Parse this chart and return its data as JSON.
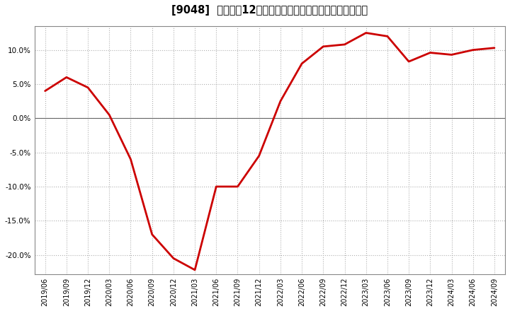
{
  "title": "[9048]  売上高の12か月移動合計の対前年同期増減率の推移",
  "line_color": "#cc0000",
  "background_color": "#ffffff",
  "grid_color": "#b0b0b0",
  "ylim": [
    -0.228,
    0.135
  ],
  "yticks": [
    -0.2,
    -0.15,
    -0.1,
    -0.05,
    0.0,
    0.05,
    0.1
  ],
  "dates": [
    "2019/06",
    "2019/09",
    "2019/12",
    "2020/03",
    "2020/06",
    "2020/09",
    "2020/12",
    "2021/03",
    "2021/06",
    "2021/09",
    "2021/12",
    "2022/03",
    "2022/06",
    "2022/09",
    "2022/12",
    "2023/03",
    "2023/06",
    "2023/09",
    "2023/12",
    "2024/03",
    "2024/06",
    "2024/09"
  ],
  "values": [
    0.04,
    0.06,
    0.045,
    0.005,
    -0.06,
    -0.17,
    -0.205,
    -0.222,
    -0.1,
    -0.1,
    -0.055,
    0.025,
    0.08,
    0.105,
    0.108,
    0.125,
    0.12,
    0.083,
    0.096,
    0.093,
    0.1,
    0.103
  ]
}
